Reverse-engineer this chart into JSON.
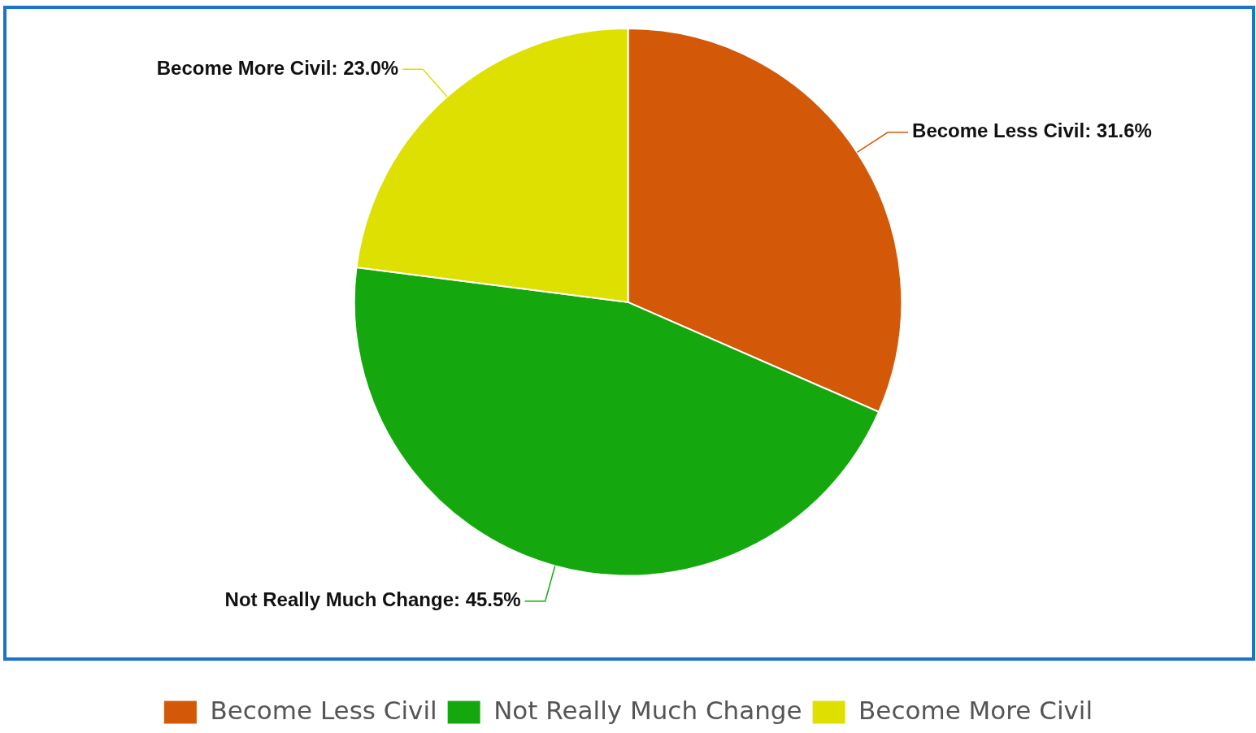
{
  "chart_data": {
    "type": "pie",
    "categories": [
      "Become Less Civil",
      "Not Really Much Change",
      "Become More Civil"
    ],
    "values": [
      31.6,
      45.5,
      23.0
    ],
    "colors": [
      "#d35807",
      "#14a80e",
      "#dde000"
    ],
    "value_labels": [
      "Become Less Civil: 31.6%",
      "Not Really Much Change: 45.5%",
      "Become More Civil: 23.0%"
    ],
    "legend": "bottom"
  }
}
